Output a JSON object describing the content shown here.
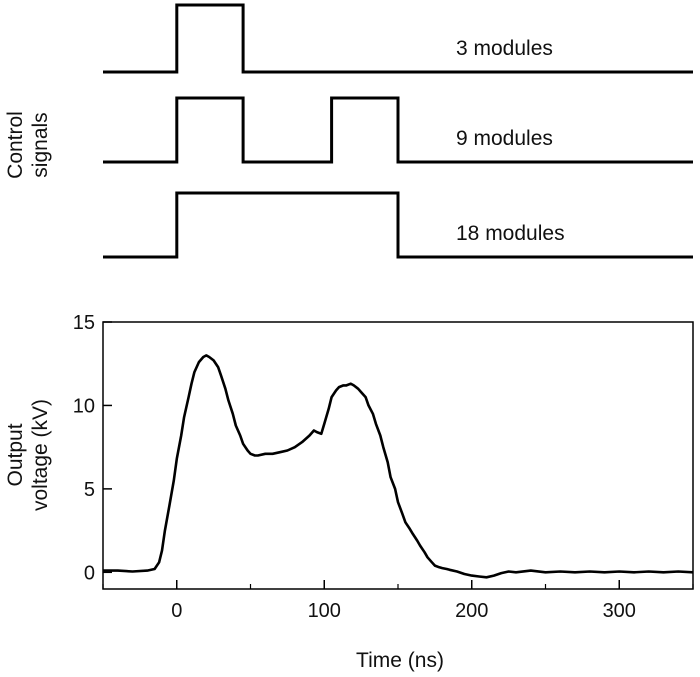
{
  "colors": {
    "trace": "#000000",
    "background": "#ffffff"
  },
  "control_panel": {
    "ylabel_line1": "Control",
    "ylabel_line2": "signals",
    "signals": [
      {
        "label": "3 modules",
        "pulses": [
          [
            0,
            45
          ]
        ]
      },
      {
        "label": "9 modules",
        "pulses": [
          [
            0,
            45
          ],
          [
            105,
            150
          ]
        ]
      },
      {
        "label": "18 modules",
        "pulses": [
          [
            0,
            150
          ]
        ]
      }
    ]
  },
  "chart_data": {
    "type": "line",
    "xlabel": "Time (ns)",
    "ylabel_line1": "Output",
    "ylabel_line2": "voltage (kV)",
    "xlim": [
      -50,
      350
    ],
    "ylim": [
      -1,
      15
    ],
    "xticks": [
      0,
      100,
      200,
      300
    ],
    "yticks": [
      0,
      5,
      10,
      15
    ],
    "grid": false,
    "series": [
      {
        "x": [
          -50,
          -40,
          -30,
          -20,
          -15,
          -12,
          -10,
          -8,
          -5,
          -2,
          0,
          3,
          5,
          8,
          10,
          12,
          15,
          18,
          20,
          22,
          25,
          28,
          30,
          33,
          35,
          38,
          40,
          43,
          45,
          48,
          50,
          53,
          55,
          60,
          65,
          70,
          75,
          80,
          85,
          90,
          93,
          95,
          98,
          100,
          103,
          105,
          108,
          110,
          113,
          115,
          118,
          120,
          123,
          125,
          128,
          130,
          133,
          135,
          138,
          140,
          143,
          145,
          148,
          150,
          153,
          155,
          158,
          160,
          163,
          165,
          168,
          170,
          173,
          175,
          178,
          180,
          183,
          185,
          190,
          195,
          200,
          205,
          210,
          215,
          220,
          225,
          230,
          240,
          250,
          260,
          270,
          280,
          290,
          300,
          310,
          320,
          330,
          340,
          350
        ],
        "y": [
          0.1,
          0.1,
          0.05,
          0.1,
          0.2,
          0.6,
          1.3,
          2.5,
          4.0,
          5.5,
          6.8,
          8.2,
          9.3,
          10.5,
          11.3,
          12.0,
          12.6,
          12.9,
          13.0,
          12.9,
          12.7,
          12.3,
          11.8,
          11.0,
          10.3,
          9.5,
          8.8,
          8.2,
          7.7,
          7.3,
          7.1,
          7.0,
          7.0,
          7.1,
          7.1,
          7.2,
          7.3,
          7.5,
          7.8,
          8.2,
          8.5,
          8.4,
          8.3,
          8.9,
          9.8,
          10.5,
          10.9,
          11.1,
          11.2,
          11.2,
          11.3,
          11.2,
          11.0,
          10.8,
          10.5,
          10.0,
          9.5,
          8.9,
          8.2,
          7.5,
          6.6,
          5.7,
          5.0,
          4.2,
          3.5,
          3.0,
          2.6,
          2.3,
          1.9,
          1.6,
          1.2,
          0.9,
          0.6,
          0.4,
          0.3,
          0.25,
          0.2,
          0.15,
          0.05,
          -0.1,
          -0.2,
          -0.25,
          -0.3,
          -0.2,
          -0.05,
          0.05,
          0.0,
          0.1,
          0.0,
          0.05,
          0.0,
          0.05,
          0.0,
          0.05,
          0.0,
          0.05,
          0.0,
          0.05,
          0.0
        ]
      }
    ]
  }
}
